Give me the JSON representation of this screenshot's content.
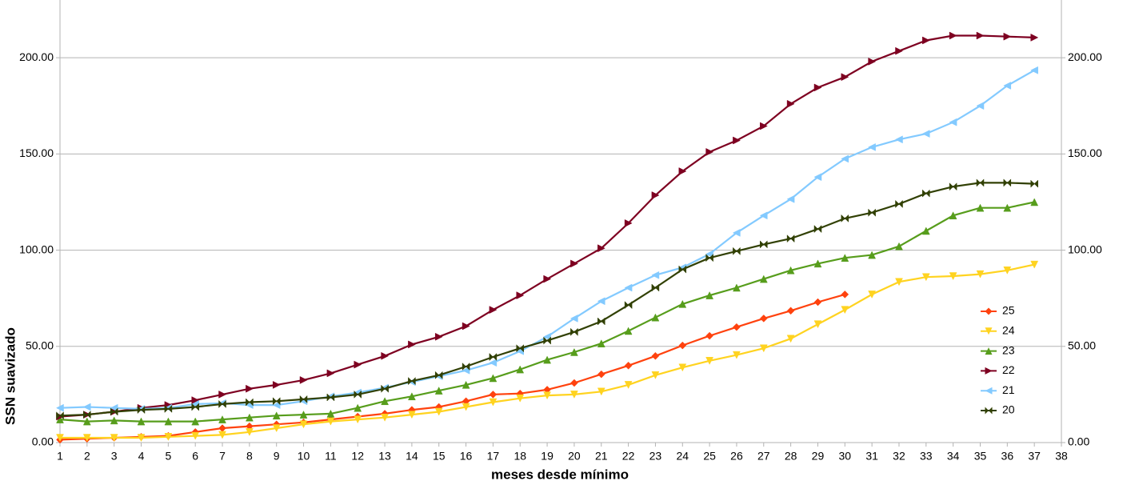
{
  "chart_data": {
    "type": "line",
    "xlabel": "meses desde mínimo",
    "ylabel": "SSN suavizado",
    "x": [
      1,
      2,
      3,
      4,
      5,
      6,
      7,
      8,
      9,
      10,
      11,
      12,
      13,
      14,
      15,
      16,
      17,
      18,
      19,
      20,
      21,
      22,
      23,
      24,
      25,
      26,
      27,
      28,
      29,
      30,
      31,
      32,
      33,
      34,
      35,
      36,
      37
    ],
    "series": [
      {
        "name": "25",
        "color": "#ff420e",
        "marker": "diamond",
        "values": [
          1.5,
          2,
          2.5,
          3,
          3.5,
          5.5,
          7.5,
          8.5,
          9.5,
          10.5,
          12,
          13.5,
          15,
          17,
          18.5,
          21.5,
          25,
          25.5,
          27.5,
          31,
          35.5,
          40,
          45,
          50.5,
          55.5,
          60,
          64.5,
          68.5,
          73,
          77,
          null,
          null,
          null,
          null,
          null,
          null,
          null
        ]
      },
      {
        "name": "24",
        "color": "#ffd320",
        "marker": "triangle-down",
        "values": [
          2.5,
          2.5,
          2.5,
          2.5,
          3,
          3.5,
          4,
          5.5,
          7.5,
          9.5,
          11,
          12,
          13,
          14.5,
          16,
          18.5,
          21,
          23,
          24.5,
          25,
          26.5,
          30,
          35,
          39,
          42.5,
          45.5,
          49,
          54,
          61.5,
          69,
          77,
          83.5,
          86,
          86.5,
          87.5,
          89.5,
          92.5
        ]
      },
      {
        "name": "23",
        "color": "#579d1c",
        "marker": "triangle-up",
        "values": [
          12,
          11,
          11.5,
          11,
          11,
          11,
          12,
          13,
          14,
          14.5,
          15,
          18,
          21.5,
          24,
          27,
          30,
          33.5,
          38,
          43,
          47,
          51.5,
          58,
          65,
          72,
          76.5,
          80.5,
          85,
          89.5,
          93,
          96,
          97.5,
          102,
          110,
          118,
          122,
          122,
          125
        ]
      },
      {
        "name": "22",
        "color": "#7e0021",
        "marker": "triangle-right",
        "values": [
          13.5,
          14.5,
          16,
          18,
          19.5,
          22,
          25,
          28,
          30,
          32.5,
          36,
          40.5,
          45,
          51,
          55,
          60.5,
          69,
          76.5,
          85,
          93,
          101,
          114,
          128.5,
          141,
          151,
          157,
          164.5,
          176,
          184.5,
          190,
          198,
          203.5,
          209,
          211.5,
          211.5,
          211,
          210.5
        ]
      },
      {
        "name": "21",
        "color": "#83caff",
        "marker": "triangle-left",
        "values": [
          18,
          18.5,
          18,
          17.5,
          18,
          20,
          20.5,
          19.5,
          19.5,
          21.5,
          24,
          26,
          28.5,
          31.5,
          34.5,
          37.5,
          41.5,
          47.5,
          55,
          64.5,
          73.5,
          80.5,
          87,
          91,
          98,
          109,
          118,
          126.5,
          138,
          147.5,
          153.5,
          157.5,
          160.5,
          166.5,
          175,
          185.5,
          193.5
        ]
      },
      {
        "name": "20",
        "color": "#314004",
        "marker": "bowtie",
        "values": [
          14,
          14.5,
          16,
          17,
          17.5,
          18.5,
          20,
          21,
          21.5,
          22.5,
          23.5,
          25,
          28,
          32,
          35,
          39.5,
          44.5,
          49,
          53,
          57.5,
          63,
          71.5,
          80.5,
          90,
          96,
          99.5,
          103,
          106,
          111,
          116.5,
          119.5,
          124,
          129.5,
          133,
          135,
          135,
          134.5
        ]
      }
    ],
    "xlim": [
      1,
      38
    ],
    "xticks": [
      1,
      2,
      3,
      4,
      5,
      6,
      7,
      8,
      9,
      10,
      11,
      12,
      13,
      14,
      15,
      16,
      17,
      18,
      19,
      20,
      21,
      22,
      23,
      24,
      25,
      26,
      27,
      28,
      29,
      30,
      31,
      32,
      33,
      34,
      35,
      36,
      37,
      38
    ],
    "ylim": [
      0,
      230
    ],
    "yticks": [
      {
        "value": 0,
        "label": "0.00"
      },
      {
        "value": 50,
        "label": "50.00"
      },
      {
        "value": 100,
        "label": "100.00"
      },
      {
        "value": 150,
        "label": "150.00"
      },
      {
        "value": 200,
        "label": "200.00"
      }
    ],
    "y2lim": [
      0,
      230
    ],
    "y2ticks": [
      {
        "value": 0,
        "label": "0.00"
      },
      {
        "value": 50,
        "label": "50.00"
      },
      {
        "value": 100,
        "label": "100.00"
      },
      {
        "value": 150,
        "label": "150.00"
      },
      {
        "value": 200,
        "label": "200.00"
      }
    ],
    "grid": true,
    "legend": "right"
  }
}
